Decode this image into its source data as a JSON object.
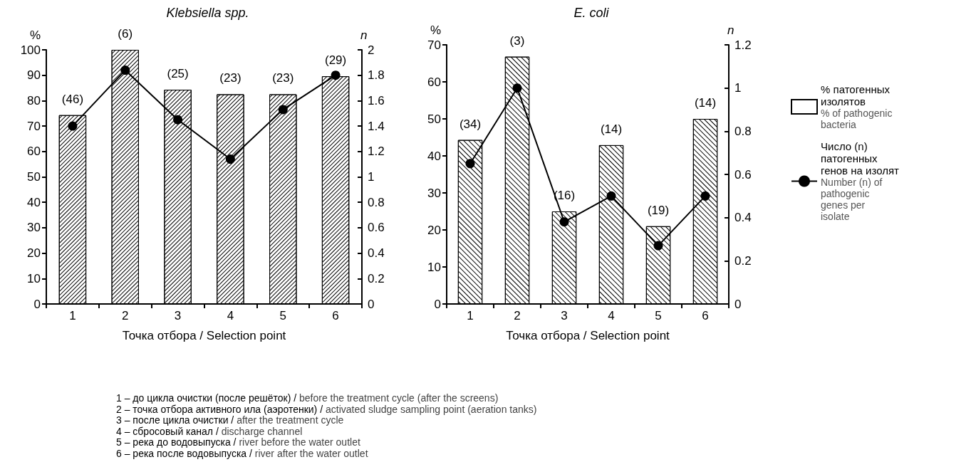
{
  "chart_data": [
    {
      "type": "bar",
      "title": "Klebsiella spp.",
      "xlabel": "Точка отбора / Selection point",
      "ylabel": "%",
      "y2label": "n",
      "categories": [
        "1",
        "2",
        "3",
        "4",
        "5",
        "6"
      ],
      "series": [
        {
          "color": "#ffffff",
          "values": [
            74.3,
            100,
            84.3,
            82.5,
            82.5,
            89.6
          ]
        },
        {
          "type": "line",
          "axis": "y2",
          "color": "#000000",
          "values": [
            1.4,
            1.84,
            1.45,
            1.14,
            1.53,
            1.8
          ]
        }
      ],
      "ylim": [
        0,
        100
      ],
      "yticks": [
        0,
        10,
        20,
        30,
        40,
        50,
        60,
        70,
        80,
        90,
        100
      ],
      "y2lim": [
        0,
        2
      ],
      "y2ticks": [
        0,
        0.2,
        0.4,
        0.6,
        0.8,
        1,
        1.2,
        1.4,
        1.6,
        1.8,
        2
      ],
      "grid": false,
      "legend": false,
      "marker": "circle",
      "line_style": "solid",
      "annotations": [
        {
          "text": "(46)",
          "x": "1",
          "y": 74.3
        },
        {
          "text": "(6)",
          "x": "2",
          "y": 100
        },
        {
          "text": "(25)",
          "x": "3",
          "y": 84.3
        },
        {
          "text": "(23)",
          "x": "4",
          "y": 82.5
        },
        {
          "text": "(23)",
          "x": "5",
          "y": 82.5
        },
        {
          "text": "(29)",
          "x": "6",
          "y": 89.6
        },
        "1 – до цикла очистки (после решёток) / before the treatment cycle (after the screens)",
        "2 – точка отбора активного ила (аэротенки) / activated sludge sampling point (aeration tanks)",
        "3 – после цикла очистки / after the treatment cycle",
        "4 – сбросовый канал / discharge channel",
        "5 – река до водовыпуска / river before the water outlet",
        "6 – река после водовыпуска / river after the water outlet"
      ]
    },
    {
      "type": "bar",
      "title": "E. coli",
      "xlabel": "Точка отбора / Selection point",
      "ylabel": "%",
      "y2label": "n",
      "categories": [
        "1",
        "2",
        "3",
        "4",
        "5",
        "6"
      ],
      "series": [
        {
          "name": "% патогенных изолятов\n% of pathogenic bacteria",
          "color": "#ffffff",
          "values": [
            44.3,
            66.8,
            25,
            42.9,
            21,
            50
          ]
        },
        {
          "type": "line",
          "axis": "y2",
          "name": "Число (n) патогенных генов на изолят\nNumber (n) of pathogenic genes per isolate",
          "color": "#000000",
          "values": [
            0.65,
            1.0,
            0.38,
            0.5,
            0.27,
            0.5
          ]
        }
      ],
      "ylim": [
        0,
        70
      ],
      "yticks": [
        0,
        10,
        20,
        30,
        40,
        50,
        60,
        70
      ],
      "y2lim": [
        0,
        1.2
      ],
      "y2ticks": [
        0,
        0.2,
        0.4,
        0.6,
        0.8,
        1,
        1.2
      ],
      "grid": false,
      "legend": "right",
      "marker": "circle",
      "line_style": "solid",
      "annotations": [
        {
          "text": "(34)",
          "x": "1",
          "y": 44.3
        },
        {
          "text": "(3)",
          "x": "2",
          "y": 66.8
        },
        {
          "text": "(16)",
          "x": "3",
          "y": 25
        },
        {
          "text": "(14)",
          "x": "4",
          "y": 42.9
        },
        {
          "text": "(19)",
          "x": "5",
          "y": 21
        },
        {
          "text": "(14)",
          "x": "6",
          "y": 50
        }
      ]
    }
  ]
}
